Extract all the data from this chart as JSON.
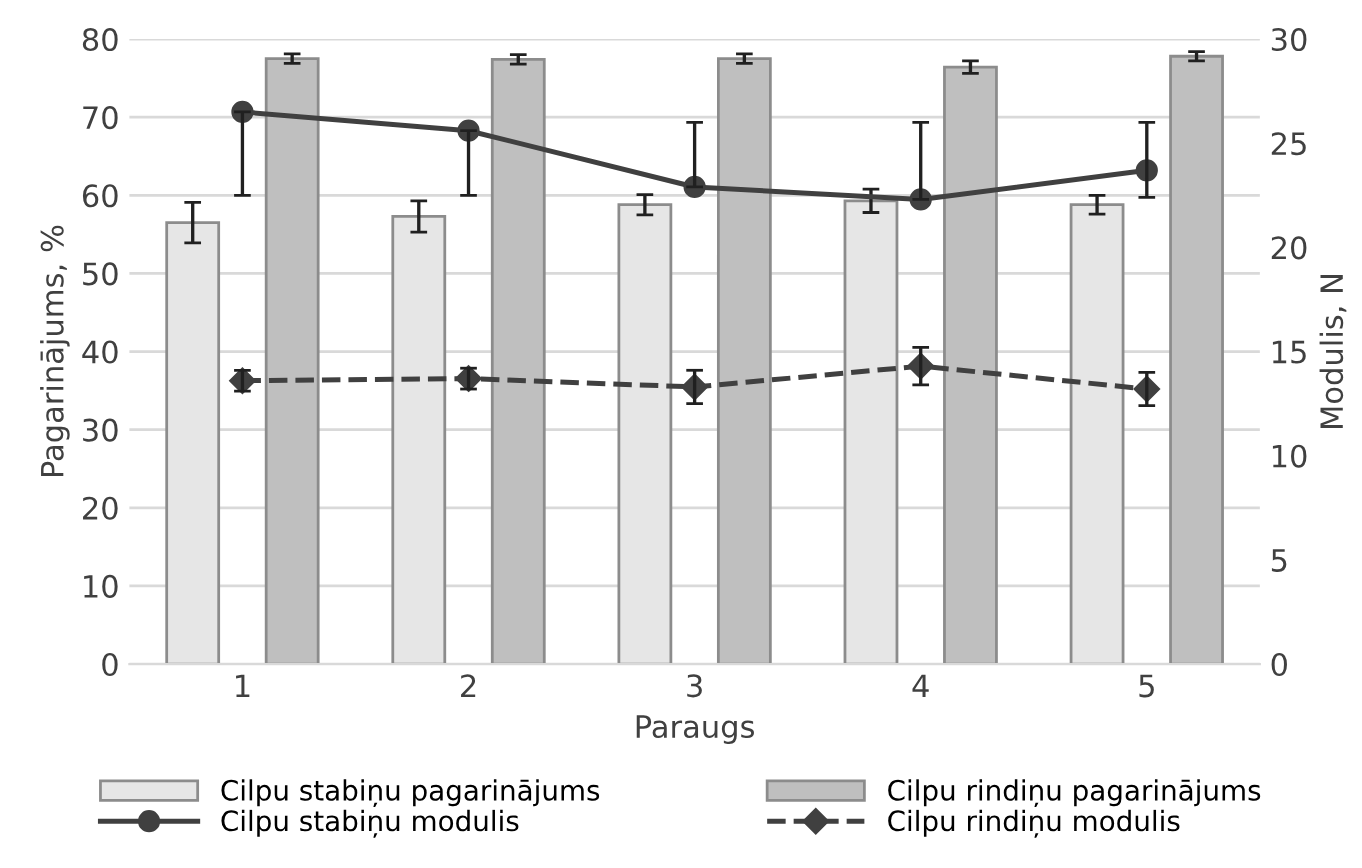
{
  "chart_data": {
    "type": "bar",
    "xlabel": "Paraugs",
    "ylabel": "Pagarinājums, %",
    "y2label": "Modulis, N",
    "categories": [
      "1",
      "2",
      "3",
      "4",
      "5"
    ],
    "series": [
      {
        "name": "Cilpu stabiņu pagarinājums",
        "color": "#e6e6e6",
        "values": [
          56.5,
          57.3,
          58.8,
          59.3,
          58.8
        ],
        "errors": [
          2.6,
          2.0,
          1.3,
          1.5,
          1.2
        ]
      },
      {
        "name": "Cilpu rindiņu pagarinājums",
        "color": "#bfbfbf",
        "values": [
          77.5,
          77.4,
          77.5,
          76.4,
          77.8
        ],
        "errors": [
          0.6,
          0.6,
          0.6,
          0.8,
          0.6
        ]
      },
      {
        "name": "Cilpu stabiņu modulis",
        "type": "line",
        "axis": "y2",
        "color": "#404040",
        "marker": "circle",
        "line_style": "solid",
        "values": [
          26.5,
          25.6,
          22.9,
          22.3,
          23.7
        ],
        "errors": [
          [
            22.5,
            26.5
          ],
          [
            22.5,
            25.6
          ],
          [
            22.9,
            26.0
          ],
          [
            22.3,
            26.0
          ],
          [
            22.4,
            26.0
          ]
        ]
      },
      {
        "name": "Cilpu rindiņu modulis",
        "type": "line",
        "axis": "y2",
        "color": "#404040",
        "marker": "diamond",
        "line_style": "dashed",
        "values": [
          13.6,
          13.7,
          13.3,
          14.3,
          13.2
        ],
        "errors": [
          0.5,
          0.5,
          0.8,
          0.9,
          0.8
        ]
      }
    ],
    "ylim": [
      0,
      80
    ],
    "yticks": [
      0,
      10,
      20,
      30,
      40,
      50,
      60,
      70,
      80
    ],
    "y2lim": [
      0,
      30
    ],
    "y2ticks": [
      0,
      5,
      10,
      15,
      20,
      25,
      30
    ],
    "grid": "y",
    "legend": "bottom"
  }
}
